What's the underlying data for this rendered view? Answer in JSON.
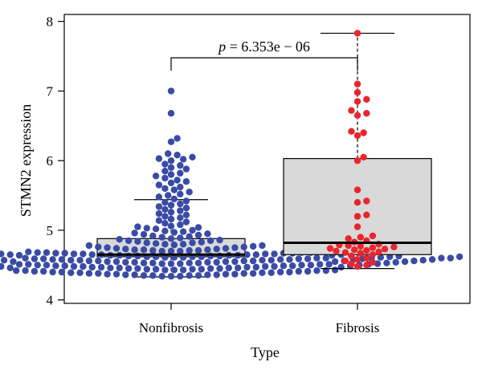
{
  "chart_data": {
    "type": "box",
    "xlabel": "Type",
    "ylabel": "STMN2 expression",
    "ylim": [
      3.95,
      8.1
    ],
    "yticks": [
      "4",
      "5",
      "6",
      "7",
      "8"
    ],
    "categories": [
      "Nonfibrosis",
      "Fibrosis"
    ],
    "annotation": {
      "label": "p = 6.353e − 06",
      "p_prefix": "p",
      "p_rest": " = 6.353e − 06"
    },
    "box_fill": "#d9d9d9",
    "groups": [
      {
        "name": "Nonfibrosis",
        "color": "#3a4ba6",
        "box": {
          "q1": 4.62,
          "median": 4.65,
          "q3": 4.88,
          "whisker_low": 4.33,
          "whisker_high": 5.44
        },
        "points": [
          7.0,
          6.68,
          6.32,
          6.27,
          6.1,
          6.08,
          6.05,
          6.03,
          6.02,
          6.0,
          5.95,
          5.93,
          5.9,
          5.88,
          5.85,
          5.82,
          5.8,
          5.78,
          5.75,
          5.72,
          5.7,
          5.68,
          5.65,
          5.62,
          5.6,
          5.58,
          5.55,
          5.52,
          5.5,
          5.48,
          5.45,
          5.42,
          5.4,
          5.38,
          5.36,
          5.34,
          5.32,
          5.3,
          5.28,
          5.26,
          5.24,
          5.22,
          5.2,
          5.18,
          5.16,
          5.14,
          5.12,
          5.1,
          5.08,
          5.06,
          5.05,
          5.04,
          5.03,
          5.02,
          5.0,
          4.99,
          4.98,
          4.97,
          4.96,
          4.95,
          4.94,
          4.93,
          4.92,
          4.91,
          4.9,
          4.89,
          4.88,
          4.87,
          4.86,
          4.85,
          4.85,
          4.84,
          4.83,
          4.82,
          4.82,
          4.81,
          4.8,
          4.8,
          4.79,
          4.78,
          4.78,
          4.77,
          4.76,
          4.76,
          4.75,
          4.75,
          4.74,
          4.74,
          4.73,
          4.73,
          4.72,
          4.72,
          4.72,
          4.71,
          4.71,
          4.71,
          4.7,
          4.7,
          4.7,
          4.7,
          4.69,
          4.69,
          4.69,
          4.69,
          4.68,
          4.68,
          4.68,
          4.68,
          4.68,
          4.67,
          4.67,
          4.67,
          4.67,
          4.67,
          4.66,
          4.66,
          4.66,
          4.66,
          4.66,
          4.66,
          4.65,
          4.65,
          4.65,
          4.65,
          4.65,
          4.65,
          4.64,
          4.64,
          4.64,
          4.64,
          4.64,
          4.64,
          4.63,
          4.63,
          4.63,
          4.63,
          4.63,
          4.63,
          4.63,
          4.62,
          4.62,
          4.62,
          4.62,
          4.62,
          4.62,
          4.62,
          4.61,
          4.61,
          4.61,
          4.61,
          4.61,
          4.61,
          4.61,
          4.6,
          4.6,
          4.6,
          4.6,
          4.6,
          4.6,
          4.6,
          4.6,
          4.59,
          4.59,
          4.59,
          4.59,
          4.59,
          4.59,
          4.59,
          4.58,
          4.58,
          4.58,
          4.58,
          4.58,
          4.58,
          4.58,
          4.57,
          4.57,
          4.57,
          4.57,
          4.57,
          4.57,
          4.57,
          4.56,
          4.56,
          4.56,
          4.56,
          4.56,
          4.56,
          4.56,
          4.55,
          4.55,
          4.55,
          4.55,
          4.55,
          4.55,
          4.55,
          4.54,
          4.54,
          4.54,
          4.54,
          4.54,
          4.54,
          4.53,
          4.53,
          4.53,
          4.53,
          4.53,
          4.53,
          4.52,
          4.52,
          4.52,
          4.52,
          4.52,
          4.52,
          4.51,
          4.51,
          4.51,
          4.51,
          4.51,
          4.51,
          4.5,
          4.5,
          4.5,
          4.5,
          4.5,
          4.5,
          4.49,
          4.49,
          4.49,
          4.49,
          4.49,
          4.48,
          4.48,
          4.48,
          4.48,
          4.48,
          4.47,
          4.47,
          4.47,
          4.47,
          4.47,
          4.46,
          4.46,
          4.46,
          4.46,
          4.46,
          4.45,
          4.45,
          4.45,
          4.45,
          4.44,
          4.44,
          4.44,
          4.44,
          4.43,
          4.43,
          4.43,
          4.43,
          4.42,
          4.42,
          4.42,
          4.42,
          4.41,
          4.41,
          4.41,
          4.41,
          4.4,
          4.4,
          4.4,
          4.4,
          4.39,
          4.39,
          4.39,
          4.39,
          4.38,
          4.38,
          4.38,
          4.38,
          4.37,
          4.37,
          4.37,
          4.37,
          4.36,
          4.36,
          4.36,
          4.36,
          4.35,
          4.35,
          4.35,
          4.35,
          4.34,
          4.34,
          4.34
        ]
      },
      {
        "name": "Fibrosis",
        "color": "#e8262c",
        "box": {
          "q1": 4.65,
          "median": 4.82,
          "q3": 6.03,
          "whisker_low": 4.45,
          "whisker_high": 7.83
        },
        "points": [
          7.83,
          7.1,
          6.98,
          6.88,
          6.85,
          6.72,
          6.68,
          6.65,
          6.42,
          6.4,
          6.36,
          6.05,
          6.0,
          5.58,
          5.42,
          5.4,
          5.22,
          5.2,
          5.05,
          4.92,
          4.9,
          4.88,
          4.85,
          4.83,
          4.8,
          4.79,
          4.78,
          4.77,
          4.76,
          4.75,
          4.74,
          4.73,
          4.72,
          4.71,
          4.7,
          4.69,
          4.68,
          4.67,
          4.65,
          4.63,
          4.6,
          4.58,
          4.56,
          4.54,
          4.52,
          4.5,
          4.48
        ]
      }
    ]
  }
}
